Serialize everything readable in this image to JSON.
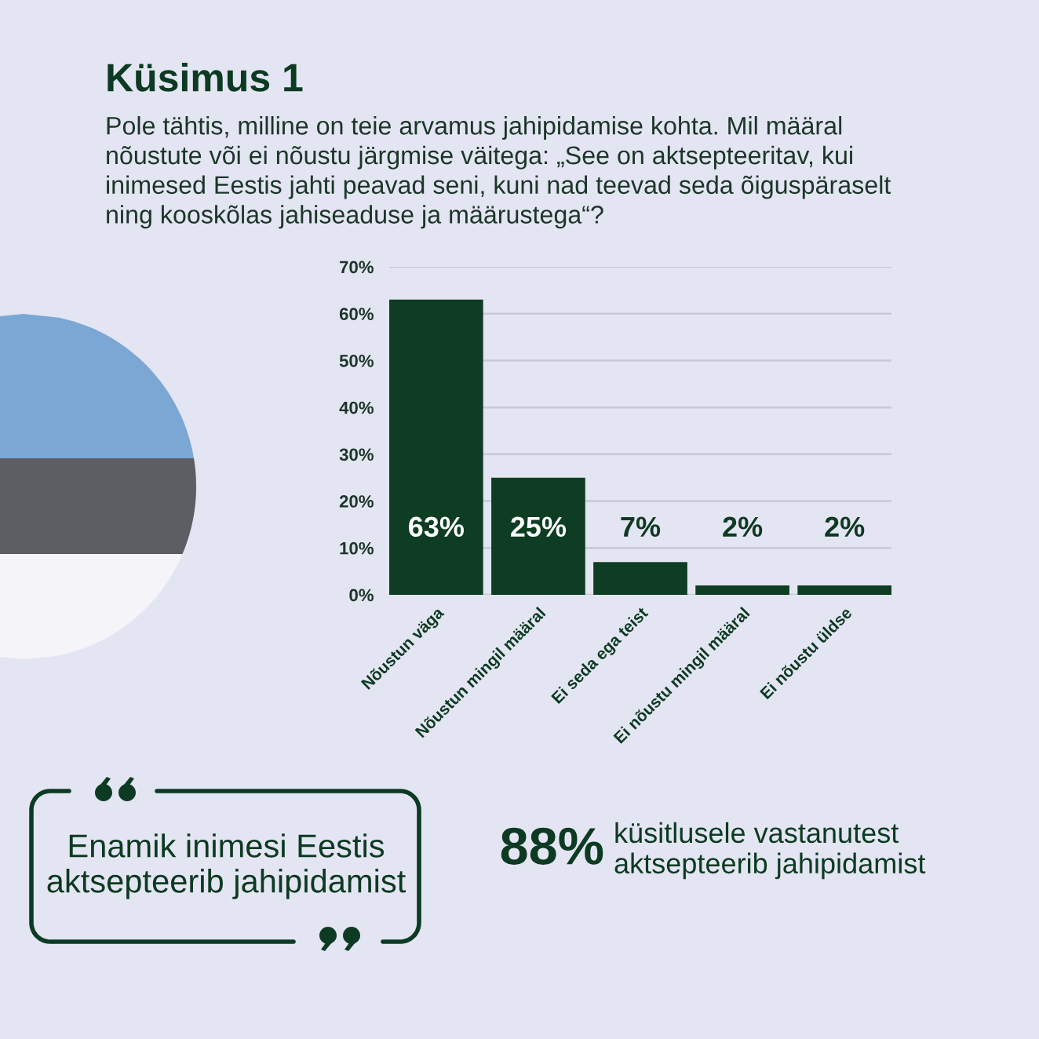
{
  "chart_data": {
    "type": "bar",
    "title": "Küsimus 1",
    "subtitle": "Pole tähtis, milline on teie arvamus jahipidamise kohta. Mil määral\nnõustute või ei nõustu järgmise väitega: „See on aktsepteeritav, kui\ninimesed Eestis jahti peavad seni, kuni nad teevad seda õiguspäraselt\nning kooskõlas jahiseaduse ja määrustega“?",
    "categories": [
      "Nõustun väga",
      "Nõustun mingil määral",
      "Ei seda ega teist",
      "Ei nõustu mingil määral",
      "Ei nõustu üldse"
    ],
    "values": [
      63,
      25,
      7,
      2,
      2
    ],
    "color": "#0e3d24",
    "value_labels": [
      "63%",
      "25%",
      "7%",
      "2%",
      "2%"
    ],
    "ylim": [
      0,
      70
    ],
    "yticks": [
      {
        "value": 0,
        "label": "0%"
      },
      {
        "value": 10,
        "label": "10%"
      },
      {
        "value": 20,
        "label": "20%"
      },
      {
        "value": 30,
        "label": "30%"
      },
      {
        "value": 40,
        "label": "40%"
      },
      {
        "value": 50,
        "label": "50%"
      },
      {
        "value": 60,
        "label": "60%"
      },
      {
        "value": 70,
        "label": "70%"
      }
    ],
    "grid": "y",
    "annotations": [
      "Enamik inimesi Eestis\naktsepteerib jahipidamist",
      "88%",
      "küsitlusele vastanutest\naktsepteerib jahipidamist"
    ]
  }
}
